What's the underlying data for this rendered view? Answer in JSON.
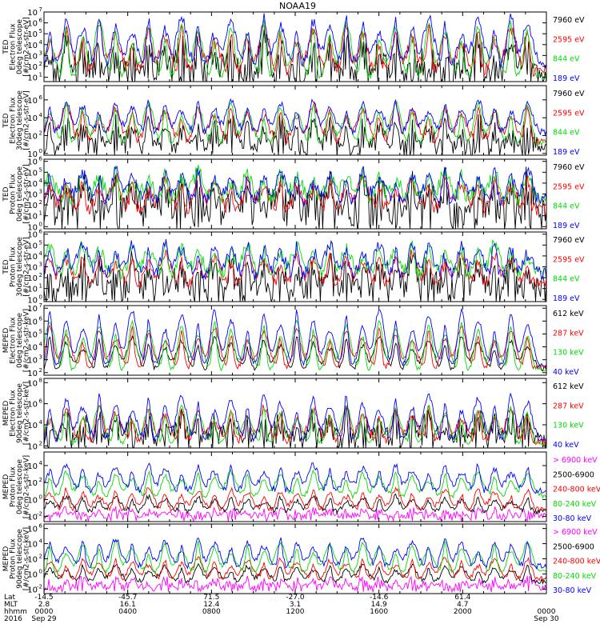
{
  "title": "NOAA19",
  "chart_data": [
    {
      "type": "line",
      "ylabel_lines": [
        "TED",
        "Electron Flux",
        "0deg telescope",
        "[#/cm2-s-str-eV]"
      ],
      "y_ticks": [
        {
          "b": "10",
          "e": "1"
        },
        {
          "b": "10",
          "e": "2"
        },
        {
          "b": "10",
          "e": "3"
        },
        {
          "b": "10",
          "e": "4"
        },
        {
          "b": "10",
          "e": "5"
        },
        {
          "b": "10",
          "e": "6"
        },
        {
          "b": "10",
          "e": "7"
        }
      ],
      "ylim_exp": [
        0.6,
        7
      ],
      "series": [
        {
          "name": "7960 eV",
          "color": "#000000",
          "base": 1.1,
          "noise": 1.2,
          "peak": 3.2,
          "spikeful": true
        },
        {
          "name": "2595 eV",
          "color": "#ff0000",
          "base": 1.6,
          "noise": 0.6,
          "peak": 3.6,
          "spikeful": false
        },
        {
          "name": "844 eV",
          "color": "#00dd00",
          "base": 1.0,
          "noise": 0.3,
          "peak": 4.6,
          "spikeful": false
        },
        {
          "name": "189 eV",
          "color": "#0000ff",
          "base": 2.3,
          "noise": 0.5,
          "peak": 3.8,
          "spikeful": false
        }
      ]
    },
    {
      "type": "line",
      "ylabel_lines": [
        "TED",
        "Electron Flux",
        "30deg telescope",
        "[#/cm2-s-str-eV]"
      ],
      "y_ticks": [
        {
          "b": "10",
          "e": "0"
        },
        {
          "b": "10",
          "e": "2"
        },
        {
          "b": "10",
          "e": "4"
        },
        {
          "b": "10",
          "e": "6"
        }
      ],
      "ylim_exp": [
        -0.2,
        7.6
      ],
      "series": [
        {
          "name": "7960 eV",
          "color": "#000000",
          "base": 0.6,
          "noise": 0.8,
          "peak": 3.0,
          "spikeful": true
        },
        {
          "name": "2595 eV",
          "color": "#ff0000",
          "base": 1.5,
          "noise": 0.5,
          "peak": 3.5,
          "spikeful": false
        },
        {
          "name": "844 eV",
          "color": "#00dd00",
          "base": 1.2,
          "noise": 0.3,
          "peak": 4.0,
          "spikeful": false
        },
        {
          "name": "189 eV",
          "color": "#0000ff",
          "base": 2.4,
          "noise": 0.4,
          "peak": 3.2,
          "spikeful": false
        }
      ]
    },
    {
      "type": "line",
      "ylabel_lines": [
        "TED",
        "Proton Flux",
        "0deg telescope",
        "[#/cm2-s-str-eV]"
      ],
      "y_ticks": [
        {
          "b": "10",
          "e": "0"
        },
        {
          "b": "10",
          "e": "1"
        },
        {
          "b": "10",
          "e": "2"
        },
        {
          "b": "10",
          "e": "3"
        },
        {
          "b": "10",
          "e": "4"
        },
        {
          "b": "10",
          "e": "5"
        },
        {
          "b": "10",
          "e": "6"
        }
      ],
      "ylim_exp": [
        -0.2,
        6.2
      ],
      "series": [
        {
          "name": "7960 eV",
          "color": "#000000",
          "base": 1.2,
          "noise": 1.4,
          "peak": 2.8,
          "spikeful": true
        },
        {
          "name": "2595 eV",
          "color": "#ff0000",
          "base": 1.6,
          "noise": 0.6,
          "peak": 2.6,
          "spikeful": false
        },
        {
          "name": "844 eV",
          "color": "#00dd00",
          "base": 2.6,
          "noise": 0.7,
          "peak": 2.2,
          "spikeful": false
        },
        {
          "name": "189 eV",
          "color": "#0000ff",
          "base": 2.4,
          "noise": 0.6,
          "peak": 2.5,
          "spikeful": false
        }
      ]
    },
    {
      "type": "line",
      "ylabel_lines": [
        "TED",
        "Proton Flux",
        "30deg telescope",
        "[#/cm2-s-str-eV]"
      ],
      "y_ticks": [
        {
          "b": "10",
          "e": "0"
        },
        {
          "b": "10",
          "e": "1"
        },
        {
          "b": "10",
          "e": "2"
        },
        {
          "b": "10",
          "e": "3"
        },
        {
          "b": "10",
          "e": "4"
        },
        {
          "b": "10",
          "e": "5"
        },
        {
          "b": "10",
          "e": "6"
        }
      ],
      "ylim_exp": [
        -0.2,
        6.2
      ],
      "series": [
        {
          "name": "7960 eV",
          "color": "#000000",
          "base": 0.8,
          "noise": 1.2,
          "peak": 2.6,
          "spikeful": true
        },
        {
          "name": "2595 eV",
          "color": "#ff0000",
          "base": 1.5,
          "noise": 0.5,
          "peak": 2.4,
          "spikeful": false
        },
        {
          "name": "844 eV",
          "color": "#00dd00",
          "base": 2.4,
          "noise": 0.6,
          "peak": 2.4,
          "spikeful": false
        },
        {
          "name": "189 eV",
          "color": "#0000ff",
          "base": 2.3,
          "noise": 0.6,
          "peak": 2.6,
          "spikeful": false
        }
      ]
    },
    {
      "type": "line",
      "ylabel_lines": [
        "MEPED",
        "Electron Flux",
        "0deg telescope",
        "[#/cm2-s-str-keV]"
      ],
      "y_ticks": [
        {
          "b": "10",
          "e": "2"
        },
        {
          "b": "10",
          "e": "3"
        },
        {
          "b": "10",
          "e": "4"
        },
        {
          "b": "10",
          "e": "5"
        },
        {
          "b": "10",
          "e": "6"
        },
        {
          "b": "10",
          "e": "7"
        }
      ],
      "ylim_exp": [
        1.8,
        7.2
      ],
      "series": [
        {
          "name": "612 keV",
          "color": "#000000",
          "base": 2.3,
          "noise": 0.2,
          "peak": 2.2,
          "spikeful": false
        },
        {
          "name": "287 keV",
          "color": "#ff0000",
          "base": 2.4,
          "noise": 0.2,
          "peak": 2.8,
          "spikeful": false
        },
        {
          "name": "130 keV",
          "color": "#00dd00",
          "base": 2.2,
          "noise": 0.15,
          "peak": 3.4,
          "spikeful": false
        },
        {
          "name": "40 keV",
          "color": "#0000ff",
          "base": 2.6,
          "noise": 0.2,
          "peak": 3.8,
          "spikeful": false
        }
      ]
    },
    {
      "type": "line",
      "ylabel_lines": [
        "MEPED",
        "Electron Flux",
        "90deg telescope",
        "[#/cm2-s-str-keV]"
      ],
      "y_ticks": [
        {
          "b": "10",
          "e": "2"
        },
        {
          "b": "10",
          "e": "4"
        },
        {
          "b": "10",
          "e": "6"
        },
        {
          "b": "10",
          "e": "8"
        }
      ],
      "ylim_exp": [
        1.8,
        8.4
      ],
      "series": [
        {
          "name": "612 keV",
          "color": "#000000",
          "base": 2.6,
          "noise": 0.8,
          "peak": 2.4,
          "spikeful": true
        },
        {
          "name": "287 keV",
          "color": "#ff0000",
          "base": 2.5,
          "noise": 0.4,
          "peak": 2.8,
          "spikeful": false
        },
        {
          "name": "130 keV",
          "color": "#00dd00",
          "base": 2.2,
          "noise": 0.2,
          "peak": 3.2,
          "spikeful": false
        },
        {
          "name": "40 keV",
          "color": "#0000ff",
          "base": 2.6,
          "noise": 0.3,
          "peak": 3.8,
          "spikeful": false
        }
      ]
    },
    {
      "type": "line",
      "ylabel_lines": [
        "MEPED",
        "Proton Flux",
        "0deg telescope",
        "[#/cm2-s-str-keV]"
      ],
      "y_ticks": [
        {
          "b": "10",
          "e": "-2"
        },
        {
          "b": "10",
          "e": "0"
        },
        {
          "b": "10",
          "e": "2"
        },
        {
          "b": "10",
          "e": "4"
        }
      ],
      "ylim_exp": [
        -2.6,
        5.6
      ],
      "series": [
        {
          "name": "> 6900 keV",
          "color": "#ff00ff",
          "base": -2.0,
          "noise": 0.4,
          "peak": 0.8,
          "spikeful": true
        },
        {
          "name": "2500-6900",
          "color": "#000000",
          "base": -1.4,
          "noise": 0.3,
          "peak": 1.6,
          "spikeful": false
        },
        {
          "name": "240-800 keV",
          "color": "#ff0000",
          "base": -1.2,
          "noise": 0.3,
          "peak": 2.2,
          "spikeful": false
        },
        {
          "name": "80-240 keV",
          "color": "#00dd00",
          "base": 0.4,
          "noise": 0.3,
          "peak": 2.6,
          "spikeful": false
        },
        {
          "name": "30-80 keV",
          "color": "#0000ff",
          "base": 1.0,
          "noise": 0.4,
          "peak": 2.8,
          "spikeful": false
        }
      ]
    },
    {
      "type": "line",
      "ylabel_lines": [
        "MEPED",
        "Proton Flux",
        "90deg telescope",
        "[#/cm2-s-str-keV]"
      ],
      "y_ticks": [
        {
          "b": "10",
          "e": "-2"
        },
        {
          "b": "10",
          "e": "0"
        },
        {
          "b": "10",
          "e": "2"
        },
        {
          "b": "10",
          "e": "4"
        },
        {
          "b": "10",
          "e": "6"
        }
      ],
      "ylim_exp": [
        -2.6,
        6.6
      ],
      "series": [
        {
          "name": "> 6900 keV",
          "color": "#ff00ff",
          "base": -1.8,
          "noise": 0.4,
          "peak": 1.2,
          "spikeful": true
        },
        {
          "name": "2500-6900",
          "color": "#000000",
          "base": -1.0,
          "noise": 0.3,
          "peak": 2.0,
          "spikeful": false
        },
        {
          "name": "240-800 keV",
          "color": "#ff0000",
          "base": -0.6,
          "noise": 0.3,
          "peak": 2.4,
          "spikeful": false
        },
        {
          "name": "80-240 keV",
          "color": "#00dd00",
          "base": 0.2,
          "noise": 0.25,
          "peak": 3.6,
          "spikeful": false
        },
        {
          "name": "30-80 keV",
          "color": "#0000ff",
          "base": 1.0,
          "noise": 0.4,
          "peak": 3.2,
          "spikeful": false
        }
      ]
    }
  ],
  "x_axis": {
    "row_labels": [
      "Lat",
      "MLT",
      "hhmm",
      "2016"
    ],
    "ticks": [
      {
        "t": 0.0,
        "lat": "-14.5",
        "mlt": "2.8",
        "hhmm": "0000",
        "date": "Sep 29"
      },
      {
        "t": 0.1667,
        "lat": "-45.7",
        "mlt": "16.1",
        "hhmm": "0400",
        "date": ""
      },
      {
        "t": 0.3333,
        "lat": "71.5",
        "mlt": "12.4",
        "hhmm": "0800",
        "date": ""
      },
      {
        "t": 0.5,
        "lat": "-27.0",
        "mlt": "3.1",
        "hhmm": "1200",
        "date": ""
      },
      {
        "t": 0.6667,
        "lat": "-14.6",
        "mlt": "14.9",
        "hhmm": "1600",
        "date": ""
      },
      {
        "t": 0.8333,
        "lat": "61.4",
        "mlt": "4.7",
        "hhmm": "2000",
        "date": ""
      },
      {
        "t": 1.0,
        "lat": "",
        "mlt": "",
        "hhmm": "0000",
        "date": "Sep 30"
      }
    ]
  }
}
